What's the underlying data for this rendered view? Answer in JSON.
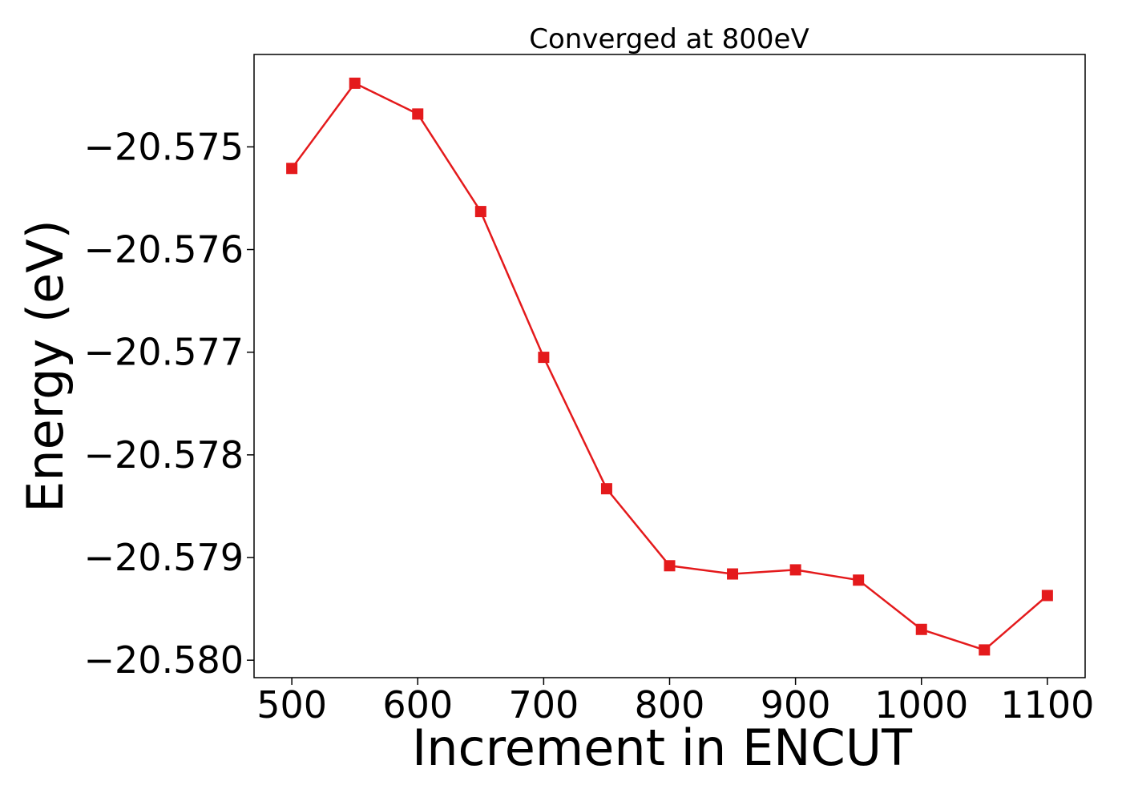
{
  "chart_data": {
    "type": "line",
    "title": "Converged at 800eV",
    "xlabel": "Increment in ENCUT",
    "ylabel": "Energy (eV)",
    "x": [
      500,
      550,
      600,
      650,
      700,
      750,
      800,
      850,
      900,
      950,
      1000,
      1050,
      1100
    ],
    "series": [
      {
        "values": [
          -20.57521,
          -20.57438,
          -20.57468,
          -20.57563,
          -20.57705,
          -20.57833,
          -20.57908,
          -20.57916,
          -20.57912,
          -20.57922,
          -20.5797,
          -20.5799,
          -20.57937
        ],
        "color": "#e41a1c",
        "marker": "square"
      }
    ],
    "xlim": [
      470,
      1130
    ],
    "ylim": [
      -20.58017,
      -20.5741
    ],
    "xticks": [
      500,
      600,
      700,
      800,
      900,
      1000,
      1100
    ],
    "yticks": [
      -20.575,
      -20.576,
      -20.577,
      -20.578,
      -20.579,
      -20.58
    ],
    "xtick_labels": [
      "500",
      "600",
      "700",
      "800",
      "900",
      "1000",
      "1100"
    ],
    "ytick_labels": [
      "−20.575",
      "−20.576",
      "−20.577",
      "−20.578",
      "−20.579",
      "−20.580"
    ],
    "grid": false,
    "legend": false
  }
}
